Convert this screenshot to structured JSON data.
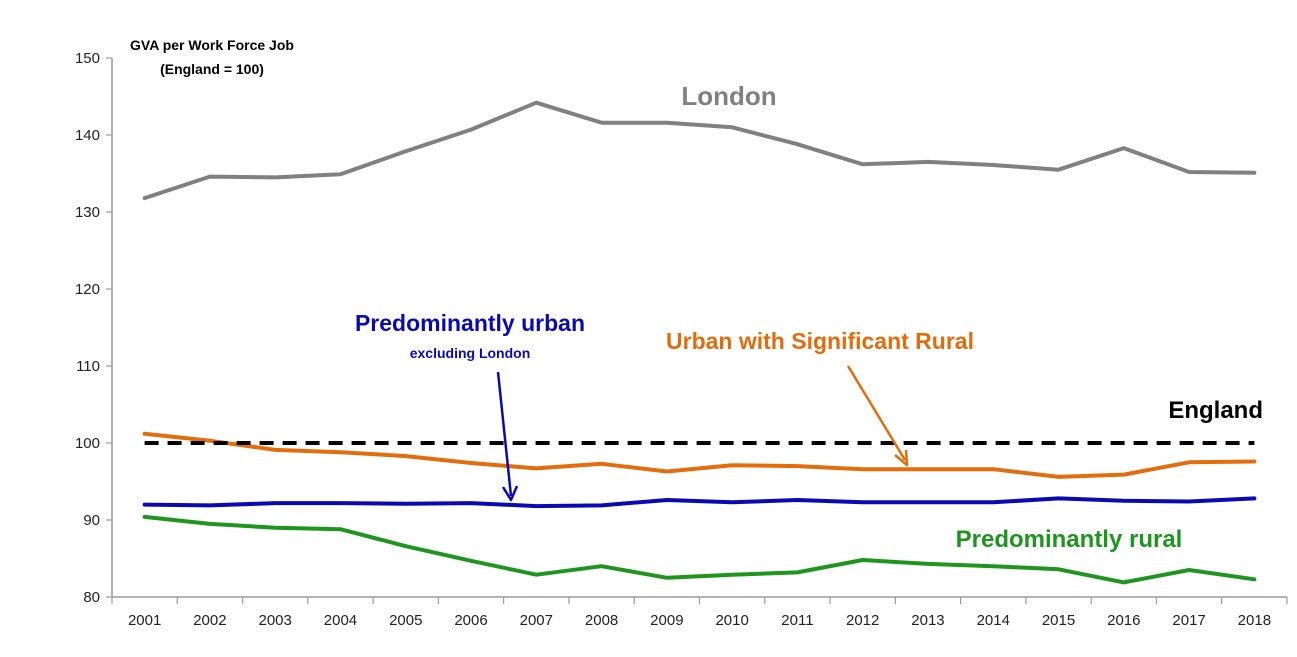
{
  "chart_data": {
    "type": "line",
    "ylabel_lines": [
      "GVA per Work Force Job",
      "(England = 100)"
    ],
    "x": [
      "2001",
      "2002",
      "2003",
      "2004",
      "2005",
      "2006",
      "2007",
      "2008",
      "2009",
      "2010",
      "2011",
      "2012",
      "2013",
      "2014",
      "2015",
      "2016",
      "2017",
      "2018"
    ],
    "ylim": [
      80,
      150
    ],
    "yticks": [
      80,
      90,
      100,
      110,
      120,
      130,
      140,
      150
    ],
    "grid": false,
    "series": [
      {
        "name": "London",
        "color": "#808080",
        "style": "solid",
        "values": [
          131.8,
          134.6,
          134.5,
          134.9,
          137.9,
          140.7,
          144.2,
          141.6,
          141.6,
          141.0,
          138.8,
          136.2,
          136.5,
          136.1,
          135.5,
          138.3,
          135.2,
          135.1
        ]
      },
      {
        "name": "Urban with Significant Rural",
        "color": "#E46C0A",
        "style": "solid",
        "values": [
          101.2,
          100.3,
          99.1,
          98.8,
          98.3,
          97.4,
          96.7,
          97.3,
          96.3,
          97.1,
          97.0,
          96.6,
          96.6,
          96.6,
          95.6,
          95.9,
          97.5,
          97.6
        ]
      },
      {
        "name": "England",
        "color": "#000000",
        "style": "dashed",
        "values": [
          100,
          100,
          100,
          100,
          100,
          100,
          100,
          100,
          100,
          100,
          100,
          100,
          100,
          100,
          100,
          100,
          100,
          100
        ]
      },
      {
        "name": "Predominantly urban",
        "sublabel": "excluding London",
        "color": "#0A0AB4",
        "style": "solid",
        "values": [
          92.0,
          91.9,
          92.2,
          92.2,
          92.1,
          92.2,
          91.8,
          91.9,
          92.6,
          92.3,
          92.6,
          92.3,
          92.3,
          92.3,
          92.8,
          92.5,
          92.4,
          92.8
        ]
      },
      {
        "name": "Predominantly rural",
        "color": "#1E961E",
        "style": "solid",
        "values": [
          90.4,
          89.5,
          89.0,
          88.8,
          86.6,
          84.7,
          82.9,
          84.0,
          82.5,
          82.9,
          83.2,
          84.8,
          84.3,
          84.0,
          83.6,
          81.9,
          83.5,
          82.3
        ]
      }
    ]
  }
}
